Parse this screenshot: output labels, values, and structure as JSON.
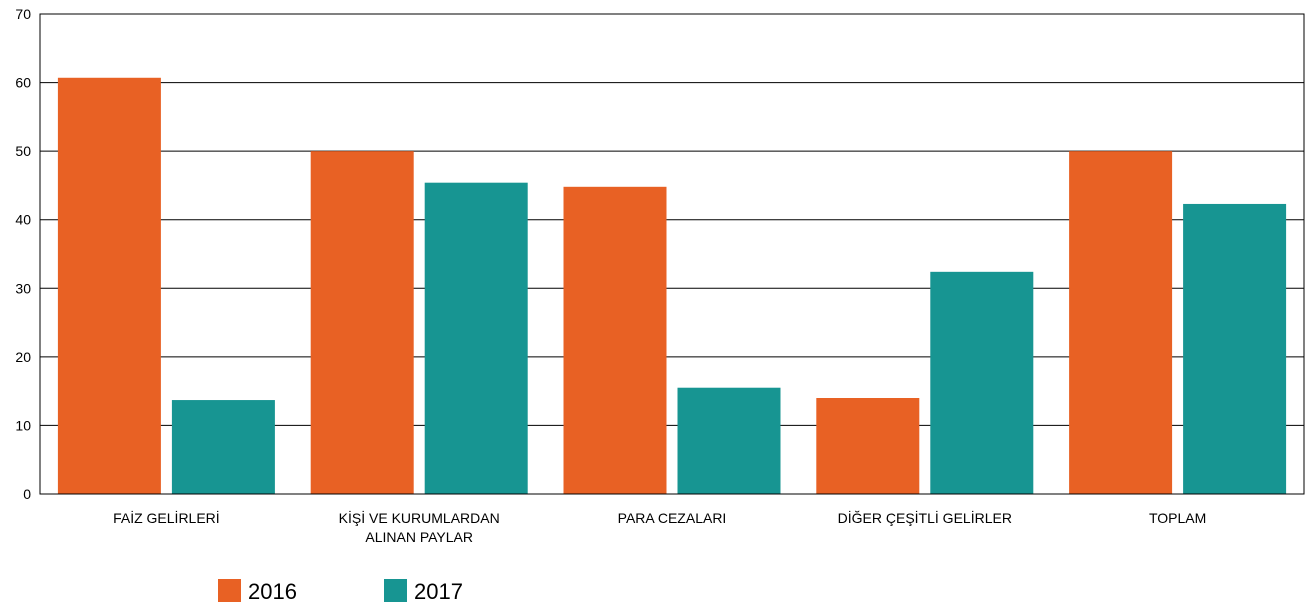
{
  "chart_data": {
    "type": "bar",
    "title": "",
    "xlabel": "",
    "ylabel": "",
    "ylim": [
      0,
      70
    ],
    "yticks": [
      0,
      10,
      20,
      30,
      40,
      50,
      60,
      70
    ],
    "grid": true,
    "legend_position": "bottom-left",
    "categories": [
      [
        "FAİZ GELİRLERİ"
      ],
      [
        "KİŞİ VE KURUMLARDAN",
        "ALINAN PAYLAR"
      ],
      [
        "PARA CEZALARI"
      ],
      [
        "DİĞER ÇEŞİTLİ GELİRLER"
      ],
      [
        "TOPLAM"
      ]
    ],
    "series": [
      {
        "name": "2016",
        "color": "#e86124",
        "values": [
          60.7,
          50.0,
          44.8,
          14.0,
          50.0
        ]
      },
      {
        "name": "2017",
        "color": "#179592",
        "values": [
          13.7,
          45.4,
          15.5,
          32.4,
          42.3
        ]
      }
    ]
  }
}
